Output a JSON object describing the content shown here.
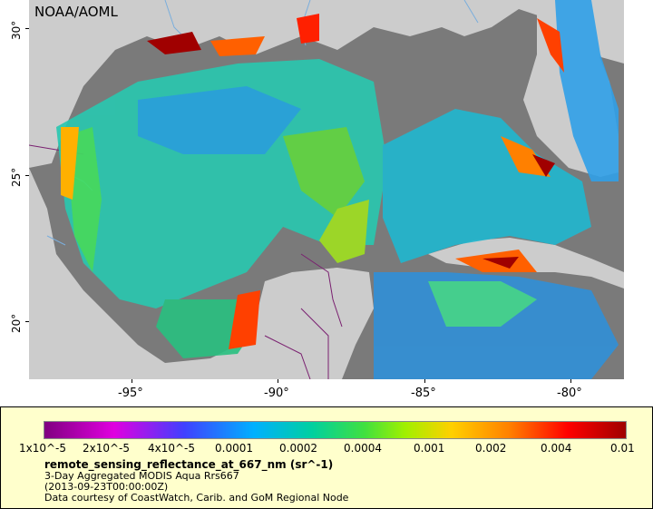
{
  "map": {
    "credit": "NOAA/AOML",
    "lat_ticks": [
      "30°",
      "25°",
      "20°"
    ],
    "lon_ticks": [
      "-95°",
      "-90°",
      "-85°",
      "-80°"
    ],
    "colors": {
      "land": "#cccccc",
      "nodata": "#7a7a7a",
      "border": "#7a2070",
      "river": "#7aaedc"
    }
  },
  "legend": {
    "colorbar_labels": [
      "1x10^-5",
      "2x10^-5",
      "4x10^-5",
      "0.0001",
      "0.0002",
      "0.0004",
      "0.001",
      "0.002",
      "0.004",
      "0.01"
    ],
    "variable": "remote_sensing_reflectance_at_667_nm (sr^-1)",
    "line1": "3-Day Aggregated MODIS Aqua Rrs667",
    "line2": "(2013-09-23T00:00:00Z)",
    "line3": "Data courtesy of CoastWatch, Carib. and GoM Regional Node"
  }
}
